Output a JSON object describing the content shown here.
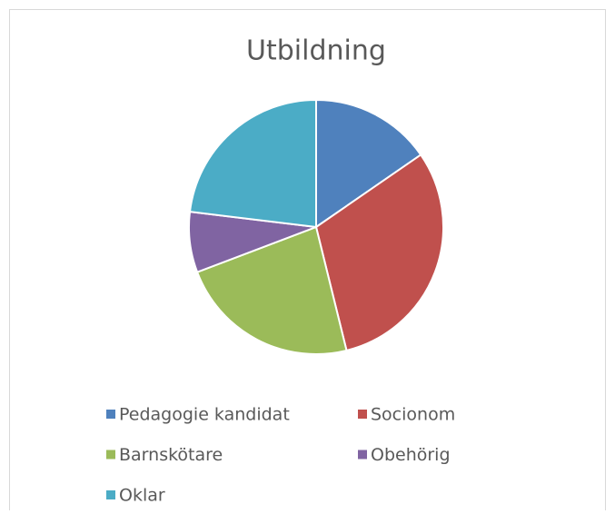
{
  "chart_data": {
    "type": "pie",
    "title": "Utbildning",
    "categories": [
      "Pedagogie kandidat",
      "Socionom",
      "Barnskötare",
      "Obehörig",
      "Oklar"
    ],
    "values": [
      15.4,
      30.8,
      23.1,
      7.7,
      23.1
    ],
    "colors": [
      "#4f81bd",
      "#c0504d",
      "#9bbb59",
      "#8064a2",
      "#4bacc6"
    ],
    "legend": "bottom"
  }
}
